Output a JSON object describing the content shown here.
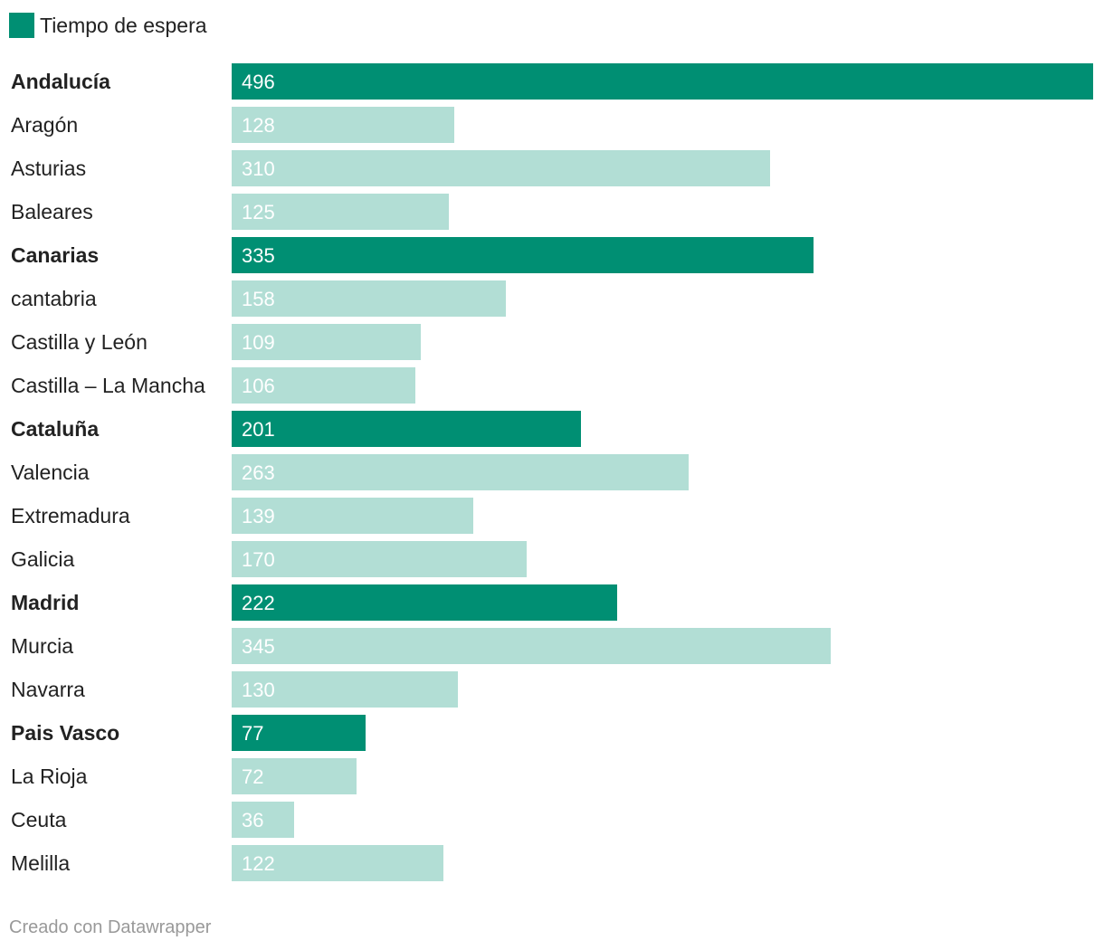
{
  "colors": {
    "highlight": "#008f73",
    "normal": "#b2ded5",
    "text": "#222222",
    "muted": "#999999"
  },
  "legend": {
    "label": "Tiempo de espera"
  },
  "footer": {
    "credit": "Creado con Datawrapper"
  },
  "chart_data": {
    "type": "bar",
    "orientation": "horizontal",
    "title": "",
    "xlabel": "",
    "ylabel": "",
    "xlim": [
      0,
      496
    ],
    "series": [
      {
        "name": "Tiempo de espera",
        "values": [
          496,
          128,
          310,
          125,
          335,
          158,
          109,
          106,
          201,
          263,
          139,
          170,
          222,
          345,
          130,
          77,
          72,
          36,
          122
        ]
      }
    ],
    "categories": [
      "Andalucía",
      "Aragón",
      "Asturias",
      "Baleares",
      "Canarias",
      "cantabria",
      "Castilla y León",
      "Castilla – La Mancha",
      "Cataluña",
      "Valencia",
      "Extremadura",
      "Galicia",
      "Madrid",
      "Murcia",
      "Navarra",
      "Pais Vasco",
      "La Rioja",
      "Ceuta",
      "Melilla"
    ],
    "highlighted": [
      "Andalucía",
      "Canarias",
      "Cataluña",
      "Madrid",
      "Pais Vasco"
    ]
  }
}
